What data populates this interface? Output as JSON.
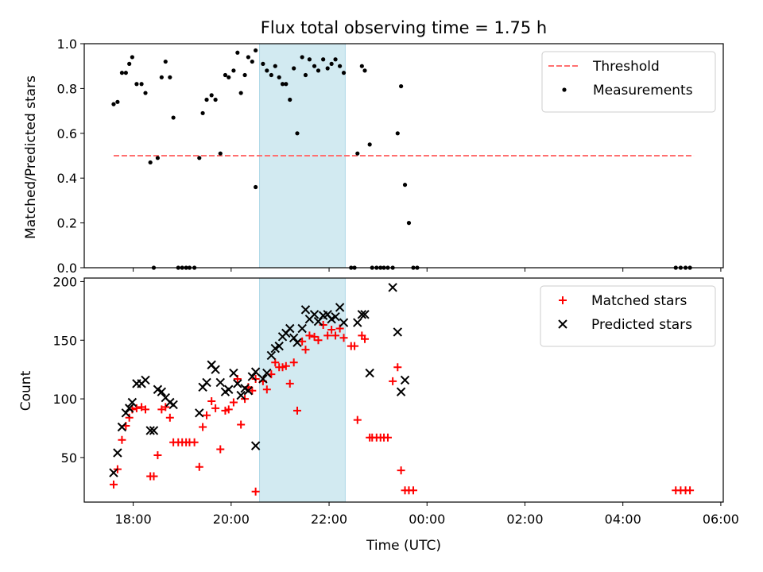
{
  "chart_data": [
    {
      "type": "scatter",
      "title": "Flux total observing time = 1.75 h",
      "ylabel": "Matched/Predicted stars",
      "ylim": [
        0,
        1.0
      ],
      "yticks": [
        0.0,
        0.2,
        0.4,
        0.6,
        0.8,
        1.0
      ],
      "ytick_labels": [
        "0.0",
        "0.2",
        "0.4",
        "0.6",
        "0.8",
        "1.0"
      ],
      "highlight_span": {
        "x0": 20.58,
        "x1": 22.33,
        "color": "#add8e6"
      },
      "threshold": {
        "name": "Threshold",
        "y": 0.5,
        "x0": 17.6,
        "x1": 29.45,
        "color": "#ff7070"
      },
      "series": [
        {
          "name": "Measurements",
          "color": "#000000",
          "points": [
            [
              17.6,
              0.73
            ],
            [
              17.68,
              0.74
            ],
            [
              17.77,
              0.87
            ],
            [
              17.85,
              0.87
            ],
            [
              17.92,
              0.91
            ],
            [
              17.98,
              0.94
            ],
            [
              18.07,
              0.82
            ],
            [
              18.17,
              0.82
            ],
            [
              18.25,
              0.78
            ],
            [
              18.35,
              0.47
            ],
            [
              18.42,
              0.0
            ],
            [
              18.5,
              0.49
            ],
            [
              18.58,
              0.85
            ],
            [
              18.66,
              0.92
            ],
            [
              18.75,
              0.85
            ],
            [
              18.82,
              0.67
            ],
            [
              18.92,
              0.0
            ],
            [
              19.0,
              0.0
            ],
            [
              19.08,
              0.0
            ],
            [
              19.15,
              0.0
            ],
            [
              19.25,
              0.0
            ],
            [
              19.35,
              0.49
            ],
            [
              19.42,
              0.69
            ],
            [
              19.5,
              0.75
            ],
            [
              19.6,
              0.77
            ],
            [
              19.68,
              0.75
            ],
            [
              19.78,
              0.51
            ],
            [
              19.88,
              0.86
            ],
            [
              19.95,
              0.85
            ],
            [
              20.05,
              0.88
            ],
            [
              20.13,
              0.96
            ],
            [
              20.2,
              0.78
            ],
            [
              20.28,
              0.86
            ],
            [
              20.35,
              0.94
            ],
            [
              20.43,
              0.92
            ],
            [
              20.5,
              0.97
            ],
            [
              20.5,
              0.36
            ],
            [
              20.65,
              0.91
            ],
            [
              20.73,
              0.88
            ],
            [
              20.82,
              0.86
            ],
            [
              20.9,
              0.9
            ],
            [
              20.98,
              0.85
            ],
            [
              21.05,
              0.82
            ],
            [
              21.12,
              0.82
            ],
            [
              21.2,
              0.75
            ],
            [
              21.28,
              0.89
            ],
            [
              21.35,
              0.6
            ],
            [
              21.45,
              0.94
            ],
            [
              21.52,
              0.86
            ],
            [
              21.6,
              0.93
            ],
            [
              21.7,
              0.9
            ],
            [
              21.78,
              0.88
            ],
            [
              21.88,
              0.93
            ],
            [
              21.97,
              0.89
            ],
            [
              22.05,
              0.91
            ],
            [
              22.13,
              0.93
            ],
            [
              22.22,
              0.9
            ],
            [
              22.3,
              0.87
            ],
            [
              22.45,
              0.0
            ],
            [
              22.52,
              0.0
            ],
            [
              22.58,
              0.51
            ],
            [
              22.67,
              0.9
            ],
            [
              22.73,
              0.88
            ],
            [
              22.83,
              0.55
            ],
            [
              22.88,
              0.0
            ],
            [
              22.97,
              0.0
            ],
            [
              23.05,
              0.0
            ],
            [
              23.12,
              0.0
            ],
            [
              23.2,
              0.0
            ],
            [
              23.3,
              0.0
            ],
            [
              23.4,
              0.6
            ],
            [
              23.47,
              0.81
            ],
            [
              23.55,
              0.37
            ],
            [
              23.63,
              0.2
            ],
            [
              23.72,
              0.0
            ],
            [
              23.8,
              0.0
            ],
            [
              29.08,
              0.0
            ],
            [
              29.18,
              0.0
            ],
            [
              29.28,
              0.0
            ],
            [
              29.37,
              0.0
            ]
          ]
        }
      ],
      "legend_placement": "top-right"
    },
    {
      "type": "scatter",
      "xlabel": "Time (UTC)",
      "ylabel": "Count",
      "xlim": [
        17.0,
        30.05
      ],
      "ylim": [
        12,
        203
      ],
      "xticks": [
        18,
        20,
        22,
        24,
        26,
        28,
        30
      ],
      "xtick_labels": [
        "18:00",
        "20:00",
        "22:00",
        "00:00",
        "02:00",
        "04:00",
        "06:00"
      ],
      "yticks": [
        50,
        100,
        150,
        200
      ],
      "ytick_labels": [
        "50",
        "100",
        "150",
        "200"
      ],
      "highlight_span": {
        "x0": 20.58,
        "x1": 22.33,
        "color": "#add8e6"
      },
      "series": [
        {
          "name": "Matched stars",
          "color": "#ff0000",
          "marker": "plus",
          "points": [
            [
              17.6,
              27
            ],
            [
              17.68,
              40
            ],
            [
              17.77,
              65
            ],
            [
              17.85,
              77
            ],
            [
              17.92,
              84
            ],
            [
              17.98,
              91
            ],
            [
              18.07,
              92
            ],
            [
              18.17,
              93
            ],
            [
              18.25,
              91
            ],
            [
              18.35,
              34
            ],
            [
              18.42,
              34
            ],
            [
              18.5,
              52
            ],
            [
              18.58,
              91
            ],
            [
              18.66,
              93
            ],
            [
              18.75,
              84
            ],
            [
              18.82,
              63
            ],
            [
              18.92,
              63
            ],
            [
              19.0,
              63
            ],
            [
              19.08,
              63
            ],
            [
              19.15,
              63
            ],
            [
              19.25,
              63
            ],
            [
              19.35,
              42
            ],
            [
              19.42,
              76
            ],
            [
              19.5,
              86
            ],
            [
              19.6,
              98
            ],
            [
              19.68,
              92
            ],
            [
              19.78,
              57
            ],
            [
              19.88,
              90
            ],
            [
              19.95,
              91
            ],
            [
              20.05,
              97
            ],
            [
              20.13,
              117
            ],
            [
              20.2,
              78
            ],
            [
              20.28,
              100
            ],
            [
              20.35,
              110
            ],
            [
              20.43,
              107
            ],
            [
              20.5,
              117
            ],
            [
              20.5,
              21
            ],
            [
              20.65,
              115
            ],
            [
              20.73,
              108
            ],
            [
              20.82,
              121
            ],
            [
              20.9,
              131
            ],
            [
              20.98,
              127
            ],
            [
              21.05,
              127
            ],
            [
              21.12,
              128
            ],
            [
              21.2,
              113
            ],
            [
              21.28,
              131
            ],
            [
              21.35,
              90
            ],
            [
              21.45,
              149
            ],
            [
              21.52,
              142
            ],
            [
              21.6,
              154
            ],
            [
              21.7,
              153
            ],
            [
              21.78,
              150
            ],
            [
              21.88,
              163
            ],
            [
              21.97,
              154
            ],
            [
              22.05,
              159
            ],
            [
              22.13,
              154
            ],
            [
              22.22,
              160
            ],
            [
              22.3,
              152
            ],
            [
              22.45,
              145
            ],
            [
              22.52,
              145
            ],
            [
              22.58,
              82
            ],
            [
              22.67,
              154
            ],
            [
              22.73,
              151
            ],
            [
              22.83,
              67
            ],
            [
              22.88,
              67
            ],
            [
              22.97,
              67
            ],
            [
              23.05,
              67
            ],
            [
              23.12,
              67
            ],
            [
              23.2,
              67
            ],
            [
              23.3,
              115
            ],
            [
              23.4,
              127
            ],
            [
              23.47,
              39
            ],
            [
              23.55,
              22
            ],
            [
              23.63,
              22
            ],
            [
              23.72,
              22
            ],
            [
              29.08,
              22
            ],
            [
              29.18,
              22
            ],
            [
              29.28,
              22
            ],
            [
              29.37,
              22
            ]
          ]
        },
        {
          "name": "Predicted stars",
          "color": "#000000",
          "marker": "x",
          "points": [
            [
              17.6,
              37
            ],
            [
              17.68,
              54
            ],
            [
              17.77,
              76
            ],
            [
              17.85,
              88
            ],
            [
              17.92,
              92
            ],
            [
              17.98,
              97
            ],
            [
              18.07,
              113
            ],
            [
              18.17,
              113
            ],
            [
              18.25,
              116
            ],
            [
              18.35,
              73
            ],
            [
              18.42,
              73
            ],
            [
              18.5,
              108
            ],
            [
              18.58,
              106
            ],
            [
              18.66,
              101
            ],
            [
              18.75,
              97
            ],
            [
              18.82,
              95
            ],
            [
              19.35,
              88
            ],
            [
              19.42,
              110
            ],
            [
              19.5,
              114
            ],
            [
              19.6,
              129
            ],
            [
              19.68,
              125
            ],
            [
              19.78,
              114
            ],
            [
              19.88,
              106
            ],
            [
              19.95,
              108
            ],
            [
              20.05,
              122
            ],
            [
              20.13,
              113
            ],
            [
              20.2,
              103
            ],
            [
              20.28,
              109
            ],
            [
              20.35,
              107
            ],
            [
              20.43,
              119
            ],
            [
              20.5,
              123
            ],
            [
              20.5,
              60
            ],
            [
              20.65,
              117
            ],
            [
              20.73,
              122
            ],
            [
              20.82,
              137
            ],
            [
              20.9,
              143
            ],
            [
              20.98,
              145
            ],
            [
              21.05,
              153
            ],
            [
              21.12,
              156
            ],
            [
              21.2,
              160
            ],
            [
              21.28,
              152
            ],
            [
              21.35,
              148
            ],
            [
              21.45,
              160
            ],
            [
              21.52,
              176
            ],
            [
              21.6,
              168
            ],
            [
              21.7,
              172
            ],
            [
              21.78,
              166
            ],
            [
              21.88,
              171
            ],
            [
              21.97,
              172
            ],
            [
              22.05,
              168
            ],
            [
              22.13,
              170
            ],
            [
              22.22,
              178
            ],
            [
              22.3,
              165
            ],
            [
              22.58,
              165
            ],
            [
              22.67,
              172
            ],
            [
              22.73,
              172
            ],
            [
              22.83,
              122
            ],
            [
              23.3,
              195
            ],
            [
              23.4,
              157
            ],
            [
              23.47,
              106
            ],
            [
              23.55,
              116
            ]
          ]
        }
      ],
      "legend_placement": "top-right"
    }
  ]
}
